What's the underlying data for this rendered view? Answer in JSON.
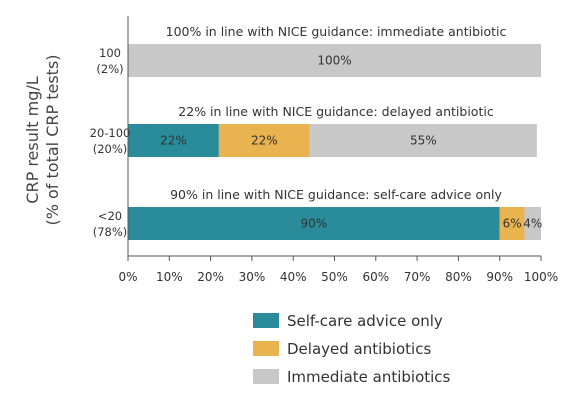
{
  "chart_data": {
    "type": "bar",
    "orientation": "horizontal",
    "stacked": true,
    "ylabel": [
      "CRP result mg/L",
      "(% of total CRP tests)"
    ],
    "xlim": [
      0,
      100
    ],
    "x_ticks": [
      "0%",
      "10%",
      "20%",
      "30%",
      "40%",
      "50%",
      "60%",
      "70%",
      "80%",
      "90%",
      "100%"
    ],
    "categories": [
      {
        "label": "100",
        "sublabel": "(2%)",
        "annotation": "100% in line with NICE guidance: immediate antibiotic"
      },
      {
        "label": "20-100",
        "sublabel": "(20%)",
        "annotation": "22% in line with NICE guidance: delayed antibiotic"
      },
      {
        "label": "<20",
        "sublabel": "(78%)",
        "annotation": "90% in line with NICE guidance: self-care advice only"
      }
    ],
    "series": [
      {
        "name": "Self-care advice only",
        "color": "#2a8b9a",
        "values": [
          0,
          22,
          90
        ],
        "labels": [
          "",
          "22%",
          "90%"
        ]
      },
      {
        "name": "Delayed antibiotics",
        "color": "#e9b34f",
        "values": [
          0,
          22,
          6
        ],
        "labels": [
          "",
          "22%",
          "6%"
        ]
      },
      {
        "name": "Immediate antibiotics",
        "color": "#c8c8c8",
        "values": [
          100,
          55,
          4
        ],
        "labels": [
          "100%",
          "55%",
          "4%"
        ]
      }
    ],
    "legend_position": "bottom",
    "grid": false
  }
}
